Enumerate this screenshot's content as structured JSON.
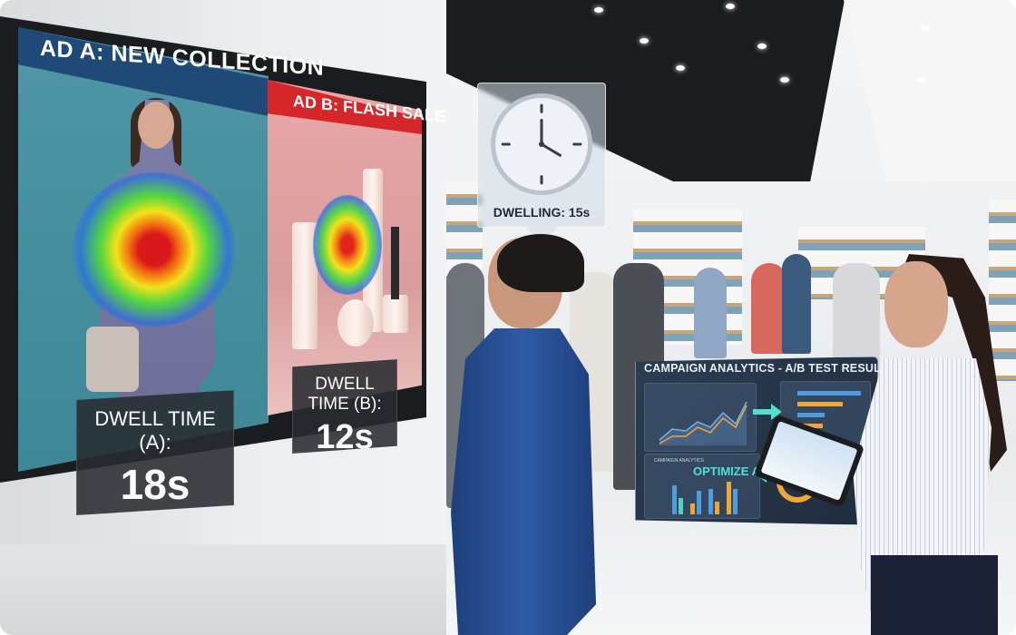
{
  "ad_a": {
    "title": "AD A: NEW COLLECTION",
    "dwell_label": "DWELL TIME (A):",
    "dwell_value": "18s"
  },
  "ad_b": {
    "title": "AD B: FLASH SALE",
    "dwell_label": "DWELL TIME (B):",
    "dwell_value": "12s"
  },
  "dwelling_indicator": {
    "label": "DWELLING: 15s",
    "icon": "clock-icon"
  },
  "analytics_panel": {
    "title": "CAMPAIGN ANALYTICS - A/B TEST RESULTS",
    "subpanel_title": "CAMPAIGN ANALYTICS",
    "callout": "OPTIMIZE A"
  },
  "colors": {
    "ad_a_header": "#1f4a78",
    "ad_a_bg": "#4f97a6",
    "ad_b_header": "#d5262a",
    "ad_b_bg": "#e9a7a8",
    "accent_blue": "#4f9de0",
    "accent_orange": "#f0a636",
    "accent_teal": "#4fe0cf"
  }
}
